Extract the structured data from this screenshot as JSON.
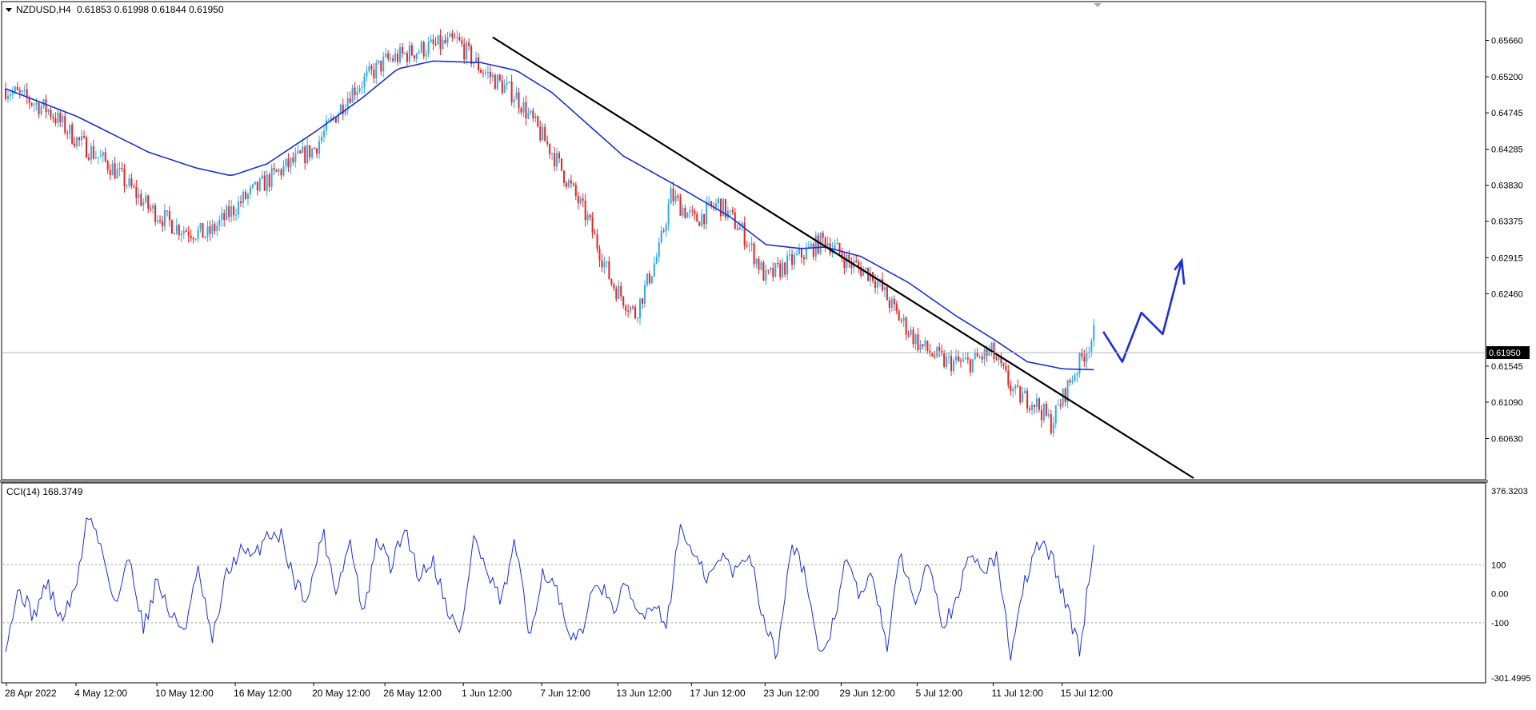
{
  "header": {
    "symbol": "NZDUSD,H4",
    "ohlc": "0.61853 0.61998 0.61844 0.61950"
  },
  "colors": {
    "bull": "#2fa8e6",
    "bear": "#e52222",
    "ma": "#1a2fd6",
    "cci": "#1a2fd6",
    "trendline": "#000000",
    "sketch": "#1a2fd6",
    "axis_text": "#000000",
    "frame": "#000000"
  },
  "chart_data": [
    {
      "type": "candlestick",
      "title": "NZDUSD,H4",
      "overlay": "moving-average",
      "ylim": [
        0.6013,
        0.6613
      ],
      "y_ticks": [
        "0.65660",
        "0.65200",
        "0.64745",
        "0.64285",
        "0.63830",
        "0.63375",
        "0.62915",
        "0.62460",
        "0.61545",
        "0.61090",
        "0.60630"
      ],
      "current_price": "0.61950",
      "x_ticks": [
        "28 Apr 2022",
        "4 May 12:00",
        "10 May 12:00",
        "16 May 12:00",
        "20 May 12:00",
        "26 May 12:00",
        "1 Jun 12:00",
        "7 Jun 12:00",
        "13 Jun 12:00",
        "17 Jun 12:00",
        "23 Jun 12:00",
        "29 Jun 12:00",
        "5 Jul 12:00",
        "11 Jul 12:00",
        "15 Jul 12:00"
      ],
      "close_path": [
        [
          0,
          0.6505
        ],
        [
          18,
          0.6478
        ],
        [
          30,
          0.644
        ],
        [
          45,
          0.6405
        ],
        [
          60,
          0.6355
        ],
        [
          72,
          0.633
        ],
        [
          85,
          0.632
        ],
        [
          100,
          0.6365
        ],
        [
          115,
          0.64
        ],
        [
          130,
          0.643
        ],
        [
          145,
          0.65
        ],
        [
          160,
          0.654
        ],
        [
          175,
          0.6555
        ],
        [
          190,
          0.6565
        ],
        [
          200,
          0.653
        ],
        [
          215,
          0.6495
        ],
        [
          230,
          0.6425
        ],
        [
          245,
          0.634
        ],
        [
          255,
          0.626
        ],
        [
          265,
          0.622
        ],
        [
          275,
          0.63
        ],
        [
          280,
          0.637
        ],
        [
          290,
          0.6338
        ],
        [
          300,
          0.636
        ],
        [
          310,
          0.6325
        ],
        [
          320,
          0.6265
        ],
        [
          335,
          0.6295
        ],
        [
          345,
          0.6315
        ],
        [
          355,
          0.6285
        ],
        [
          365,
          0.627
        ],
        [
          375,
          0.622
        ],
        [
          385,
          0.618
        ],
        [
          395,
          0.616
        ],
        [
          405,
          0.6158
        ],
        [
          415,
          0.6172
        ],
        [
          425,
          0.6118
        ],
        [
          433,
          0.611
        ],
        [
          440,
          0.6082
        ],
        [
          448,
          0.6135
        ],
        [
          458,
          0.6195
        ]
      ],
      "candle_count": 459,
      "moving_average": [
        [
          0,
          0.6505
        ],
        [
          30,
          0.647
        ],
        [
          60,
          0.6425
        ],
        [
          80,
          0.6405
        ],
        [
          95,
          0.6395
        ],
        [
          110,
          0.641
        ],
        [
          130,
          0.645
        ],
        [
          150,
          0.6493
        ],
        [
          165,
          0.653
        ],
        [
          180,
          0.654
        ],
        [
          200,
          0.6538
        ],
        [
          215,
          0.6528
        ],
        [
          230,
          0.65
        ],
        [
          245,
          0.646
        ],
        [
          260,
          0.642
        ],
        [
          285,
          0.6378
        ],
        [
          305,
          0.6343
        ],
        [
          320,
          0.6308
        ],
        [
          335,
          0.6303
        ],
        [
          345,
          0.6305
        ],
        [
          360,
          0.6293
        ],
        [
          380,
          0.626
        ],
        [
          400,
          0.6218
        ],
        [
          415,
          0.619
        ],
        [
          430,
          0.616
        ],
        [
          445,
          0.6151
        ],
        [
          458,
          0.615
        ]
      ],
      "trendline": [
        [
          205,
          0.657
        ],
        [
          500,
          0.6013
        ]
      ],
      "projection": [
        [
          462,
          0.6198
        ],
        [
          470,
          0.616
        ],
        [
          478,
          0.6222
        ],
        [
          487,
          0.6195
        ],
        [
          495,
          0.6288
        ]
      ]
    },
    {
      "type": "line",
      "title": "CCI(14) 168.3749",
      "ylim": [
        -301.4995,
        376.3203
      ],
      "y_ticks": [
        "376.3203",
        "100",
        "0.00",
        "-100",
        "-301.4995"
      ],
      "levels": [
        100,
        -100
      ],
      "series": [
        {
          "name": "CCI(14)",
          "values": [
            -170,
            20,
            -80,
            40,
            -90,
            0,
            280,
            150,
            -40,
            130,
            -120,
            50,
            -80,
            -120,
            80,
            -170,
            60,
            150,
            120,
            210,
            200,
            40,
            -20,
            220,
            10,
            180,
            -80,
            190,
            90,
            230,
            60,
            120,
            -40,
            -150,
            200,
            60,
            -30,
            180,
            -150,
            80,
            10,
            -180,
            -100,
            60,
            -60,
            20,
            -80,
            -30,
            -100,
            240,
            120,
            50,
            130,
            70,
            150,
            -80,
            -220,
            180,
            80,
            -220,
            -120,
            120,
            -10,
            60,
            -180,
            140,
            -40,
            140,
            -100,
            -40,
            140,
            90,
            120,
            -220,
            40,
            180,
            120,
            -40,
            -200,
            190
          ]
        }
      ]
    }
  ]
}
